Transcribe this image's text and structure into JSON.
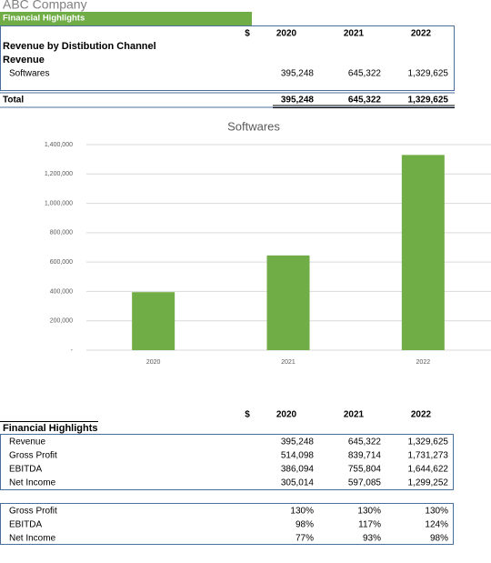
{
  "header": {
    "company": "ABC Company",
    "banner": "Financial Highlights"
  },
  "table1": {
    "currency": "$",
    "years": [
      "2020",
      "2021",
      "2022"
    ],
    "section": "Revenue by Distibution Channel",
    "group": "Revenue",
    "rows": [
      {
        "label": "Softwares",
        "values": [
          "395,248",
          "645,322",
          "1,329,625"
        ]
      }
    ],
    "total": {
      "label": "Total",
      "values": [
        "395,248",
        "645,322",
        "1,329,625"
      ]
    }
  },
  "chart_data": {
    "type": "bar",
    "title": "Softwares",
    "categories": [
      "2020",
      "2021",
      "2022"
    ],
    "values": [
      395248,
      645322,
      1329625
    ],
    "color": "#70ad47",
    "ylim": [
      0,
      1400000
    ],
    "yticks": [
      {
        "value": 0,
        "label": "-"
      },
      {
        "value": 200000,
        "label": "200,000"
      },
      {
        "value": 400000,
        "label": "400,000"
      },
      {
        "value": 600000,
        "label": "600,000"
      },
      {
        "value": 800000,
        "label": "800,000"
      },
      {
        "value": 1000000,
        "label": "1,000,000"
      },
      {
        "value": 1200000,
        "label": "1,200,000"
      },
      {
        "value": 1400000,
        "label": "1,400,000"
      }
    ],
    "grid": true
  },
  "table2": {
    "currency": "$",
    "years": [
      "2020",
      "2021",
      "2022"
    ],
    "section": "Financial Highlights",
    "rows": [
      {
        "label": "Revenue",
        "values": [
          "395,248",
          "645,322",
          "1,329,625"
        ]
      },
      {
        "label": "Gross Profit",
        "values": [
          "514,098",
          "839,714",
          "1,731,273"
        ]
      },
      {
        "label": "EBITDA",
        "values": [
          "386,094",
          "755,804",
          "1,644,622"
        ]
      },
      {
        "label": "Net Income",
        "values": [
          "305,014",
          "597,085",
          "1,299,252"
        ]
      }
    ],
    "ratios": [
      {
        "label": "Gross Profit",
        "values": [
          "130%",
          "130%",
          "130%"
        ]
      },
      {
        "label": "EBITDA",
        "values": [
          "98%",
          "117%",
          "124%"
        ]
      },
      {
        "label": "Net Income",
        "values": [
          "77%",
          "93%",
          "98%"
        ]
      }
    ]
  }
}
